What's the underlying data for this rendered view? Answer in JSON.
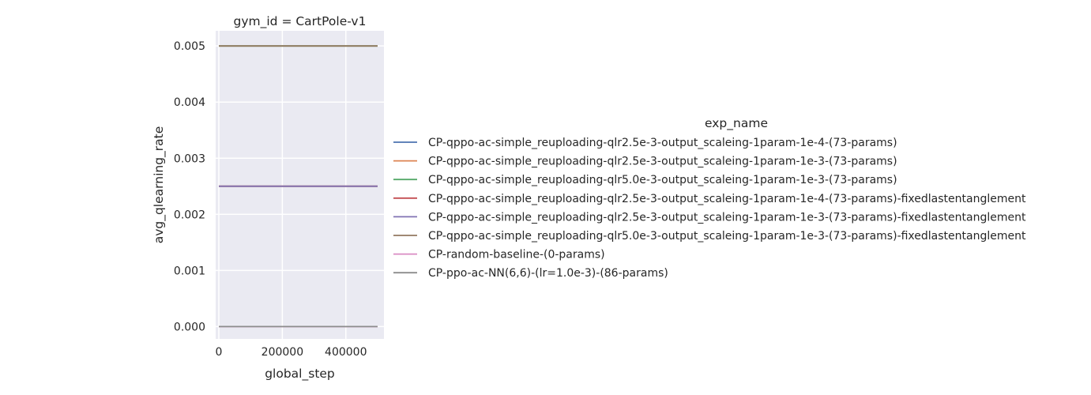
{
  "chart_data": {
    "type": "line",
    "title": "gym_id = CartPole-v1",
    "xlabel": "global_step",
    "ylabel": "avg_qlearning_rate",
    "xlim": [
      -10000,
      520000
    ],
    "ylim": [
      -0.00022,
      0.00527
    ],
    "xticks": [
      0,
      200000,
      400000
    ],
    "yticks": [
      0.0,
      0.001,
      0.002,
      0.003,
      0.004,
      0.005
    ],
    "xtick_labels": [
      "0",
      "200000",
      "400000"
    ],
    "ytick_labels": [
      "0.000",
      "0.001",
      "0.002",
      "0.003",
      "0.004",
      "0.005"
    ],
    "grid": true,
    "legend_title": "exp_name",
    "legend_position": "right",
    "x": [
      0,
      500000
    ],
    "series": [
      {
        "name": "CP-qppo-ac-simple_reuploading-qlr2.5e-3-output_scaleing-1param-1e-4-(73-params)",
        "color": "#4c72b0",
        "values": [
          0.0025,
          0.0025
        ]
      },
      {
        "name": "CP-qppo-ac-simple_reuploading-qlr2.5e-3-output_scaleing-1param-1e-3-(73-params)",
        "color": "#dd8452",
        "values": [
          0.0025,
          0.0025
        ]
      },
      {
        "name": "CP-qppo-ac-simple_reuploading-qlr5.0e-3-output_scaleing-1param-1e-3-(73-params)",
        "color": "#55a868",
        "values": [
          0.005,
          0.005
        ]
      },
      {
        "name": "CP-qppo-ac-simple_reuploading-qlr2.5e-3-output_scaleing-1param-1e-4-(73-params)-fixedlastentanglement",
        "color": "#c44e52",
        "values": [
          0.0025,
          0.0025
        ]
      },
      {
        "name": "CP-qppo-ac-simple_reuploading-qlr2.5e-3-output_scaleing-1param-1e-3-(73-params)-fixedlastentanglement",
        "color": "#8172b3",
        "values": [
          0.0025,
          0.0025
        ]
      },
      {
        "name": "CP-qppo-ac-simple_reuploading-qlr5.0e-3-output_scaleing-1param-1e-3-(73-params)-fixedlastentanglement",
        "color": "#937860",
        "values": [
          0.005,
          0.005
        ]
      },
      {
        "name": "CP-random-baseline-(0-params)",
        "color": "#da8bc3",
        "values": [
          0.0,
          0.0
        ]
      },
      {
        "name": "CP-ppo-ac-NN(6,6)-(lr=1.0e-3)-(86-params)",
        "color": "#8c8c8c",
        "values": [
          0.0,
          0.0
        ]
      }
    ]
  }
}
